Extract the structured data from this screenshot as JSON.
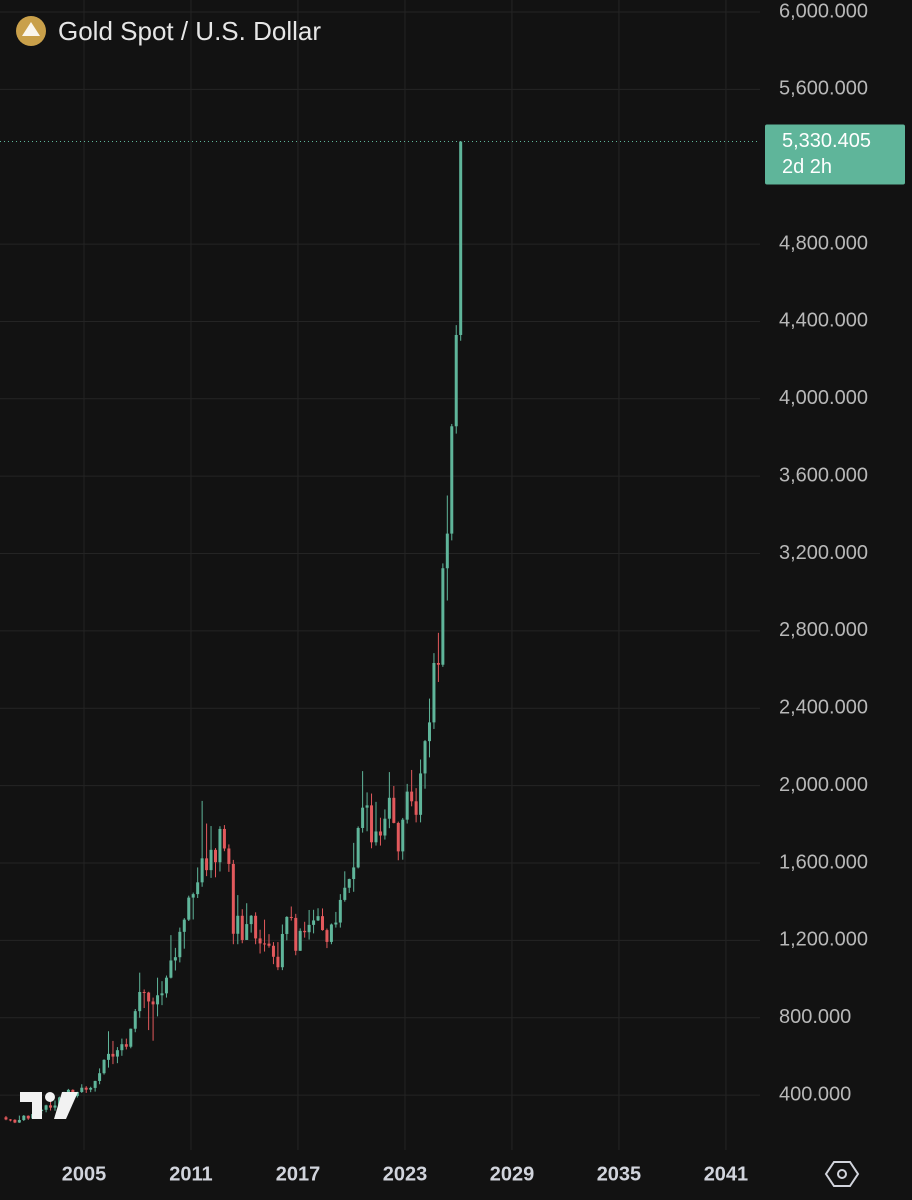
{
  "chart_data": {
    "type": "candlestick",
    "title": "Gold Spot / U.S. Dollar",
    "up_color": "#5fb59a",
    "down_color": "#e2595c",
    "grid": true,
    "xlim": [
      2000.29,
      2042.91
    ],
    "xticks": [
      2005,
      2011,
      2017,
      2023,
      2029,
      2035,
      2041
    ],
    "ylim": [
      116,
      6062
    ],
    "yticks": [
      {
        "value": 400,
        "label": "400.000"
      },
      {
        "value": 800,
        "label": "800.000"
      },
      {
        "value": 1200,
        "label": "1,200.000"
      },
      {
        "value": 1600,
        "label": "1,600.000"
      },
      {
        "value": 2000,
        "label": "2,000.000"
      },
      {
        "value": 2400,
        "label": "2,400.000"
      },
      {
        "value": 2800,
        "label": "2,800.000"
      },
      {
        "value": 3200,
        "label": "3,200.000"
      },
      {
        "value": 3600,
        "label": "3,600.000"
      },
      {
        "value": 4000,
        "label": "4,000.000"
      },
      {
        "value": 4400,
        "label": "4,400.000"
      },
      {
        "value": 4800,
        "label": "4,800.000"
      },
      {
        "value": 5600,
        "label": "5,600.000"
      },
      {
        "value": 6000,
        "label": "6,000.000"
      }
    ],
    "last_price": {
      "value": 5330.405,
      "label": "5,330.405"
    },
    "countdown": "2d 2h",
    "x": [
      2000.625,
      2000.875,
      2001.125,
      2001.375,
      2001.625,
      2001.875,
      2002.125,
      2002.375,
      2002.625,
      2002.875,
      2003.125,
      2003.375,
      2003.625,
      2003.875,
      2004.125,
      2004.375,
      2004.625,
      2004.875,
      2005.125,
      2005.375,
      2005.625,
      2005.875,
      2006.125,
      2006.375,
      2006.625,
      2006.875,
      2007.125,
      2007.375,
      2007.625,
      2007.875,
      2008.125,
      2008.375,
      2008.625,
      2008.875,
      2009.125,
      2009.375,
      2009.625,
      2009.875,
      2010.125,
      2010.375,
      2010.625,
      2010.875,
      2011.125,
      2011.375,
      2011.625,
      2011.875,
      2012.125,
      2012.375,
      2012.625,
      2012.875,
      2013.125,
      2013.375,
      2013.625,
      2013.875,
      2014.125,
      2014.375,
      2014.625,
      2014.875,
      2015.125,
      2015.375,
      2015.625,
      2015.875,
      2016.125,
      2016.375,
      2016.625,
      2016.875,
      2017.125,
      2017.375,
      2017.625,
      2017.875,
      2018.125,
      2018.375,
      2018.625,
      2018.875,
      2019.125,
      2019.375,
      2019.625,
      2019.875,
      2020.125,
      2020.375,
      2020.625,
      2020.875,
      2021.125,
      2021.375,
      2021.625,
      2021.875,
      2022.125,
      2022.375,
      2022.625,
      2022.875,
      2023.125,
      2023.375,
      2023.625,
      2023.875,
      2024.125,
      2024.375,
      2024.625,
      2024.875,
      2025.125,
      2025.375,
      2025.625,
      2025.875,
      2026.125
    ],
    "open": [
      285,
      274,
      272,
      258,
      271,
      293,
      279,
      302,
      318,
      324,
      347,
      335,
      346,
      388,
      416,
      427,
      395,
      416,
      438,
      428,
      437,
      473,
      513,
      582,
      613,
      599,
      632,
      663,
      650,
      743,
      834,
      933,
      930,
      884,
      869,
      916,
      926,
      1007,
      1096,
      1113,
      1244,
      1307,
      1421,
      1439,
      1500,
      1624,
      1563,
      1668,
      1604,
      1776,
      1675,
      1595,
      1234,
      1327,
      1202,
      1284,
      1327,
      1210,
      1184,
      1183,
      1172,
      1115,
      1061,
      1233,
      1321,
      1316,
      1146,
      1249,
      1242,
      1280,
      1303,
      1325,
      1253,
      1192,
      1282,
      1292,
      1409,
      1472,
      1517,
      1577,
      1781,
      1886,
      1898,
      1707,
      1763,
      1742,
      1829,
      1937,
      1807,
      1660,
      1824,
      1969,
      1919,
      1849,
      2063,
      2230,
      2327,
      2634,
      2625,
      3124,
      3303,
      3858,
      4330
    ],
    "high": [
      292,
      276,
      275,
      294,
      297,
      295,
      305,
      330,
      327,
      350,
      382,
      372,
      392,
      417,
      432,
      430,
      417,
      456,
      446,
      443,
      474,
      538,
      585,
      730,
      680,
      648,
      692,
      692,
      744,
      845,
      1033,
      946,
      934,
      904,
      1007,
      989,
      1018,
      1227,
      1161,
      1266,
      1315,
      1431,
      1447,
      1577,
      1921,
      1804,
      1791,
      1677,
      1790,
      1796,
      1696,
      1616,
      1434,
      1361,
      1392,
      1331,
      1345,
      1255,
      1307,
      1232,
      1191,
      1191,
      1282,
      1325,
      1375,
      1337,
      1262,
      1296,
      1357,
      1358,
      1366,
      1365,
      1261,
      1287,
      1347,
      1439,
      1557,
      1519,
      1704,
      1789,
      2075,
      1965,
      1959,
      1916,
      1834,
      1877,
      2070,
      1998,
      1814,
      1833,
      2009,
      2081,
      1987,
      2135,
      2236,
      2450,
      2685,
      2790,
      3149,
      3500,
      3870,
      4381,
      5330.405
    ],
    "low": [
      270,
      264,
      255,
      256,
      266,
      272,
      277,
      295,
      301,
      311,
      320,
      319,
      342,
      371,
      390,
      375,
      387,
      411,
      411,
      415,
      418,
      456,
      506,
      542,
      560,
      565,
      603,
      636,
      642,
      725,
      800,
      850,
      736,
      681,
      807,
      865,
      904,
      1003,
      1044,
      1086,
      1157,
      1300,
      1308,
      1419,
      1477,
      1532,
      1523,
      1526,
      1556,
      1661,
      1554,
      1180,
      1180,
      1185,
      1202,
      1240,
      1180,
      1132,
      1142,
      1162,
      1077,
      1046,
      1046,
      1200,
      1302,
      1123,
      1146,
      1214,
      1204,
      1236,
      1300,
      1250,
      1160,
      1180,
      1266,
      1266,
      1400,
      1445,
      1451,
      1572,
      1757,
      1764,
      1676,
      1690,
      1690,
      1721,
      1780,
      1805,
      1614,
      1617,
      1804,
      1893,
      1810,
      1810,
      1984,
      2146,
      2293,
      2536,
      2614,
      2957,
      3268,
      3820,
      4300
    ],
    "close": [
      274,
      272,
      258,
      271,
      293,
      279,
      302,
      318,
      324,
      347,
      335,
      346,
      388,
      416,
      427,
      395,
      416,
      438,
      428,
      437,
      473,
      513,
      582,
      613,
      599,
      632,
      663,
      650,
      743,
      834,
      933,
      930,
      884,
      869,
      916,
      926,
      1007,
      1096,
      1113,
      1244,
      1307,
      1421,
      1439,
      1500,
      1624,
      1563,
      1668,
      1604,
      1776,
      1675,
      1595,
      1234,
      1327,
      1202,
      1284,
      1327,
      1210,
      1184,
      1183,
      1172,
      1115,
      1061,
      1233,
      1321,
      1316,
      1146,
      1249,
      1242,
      1280,
      1303,
      1325,
      1253,
      1192,
      1282,
      1292,
      1409,
      1472,
      1517,
      1577,
      1781,
      1886,
      1898,
      1707,
      1763,
      1742,
      1829,
      1937,
      1807,
      1660,
      1824,
      1969,
      1919,
      1849,
      2063,
      2230,
      2327,
      2634,
      2625,
      3124,
      3303,
      3858,
      4330,
      5330.405
    ]
  }
}
